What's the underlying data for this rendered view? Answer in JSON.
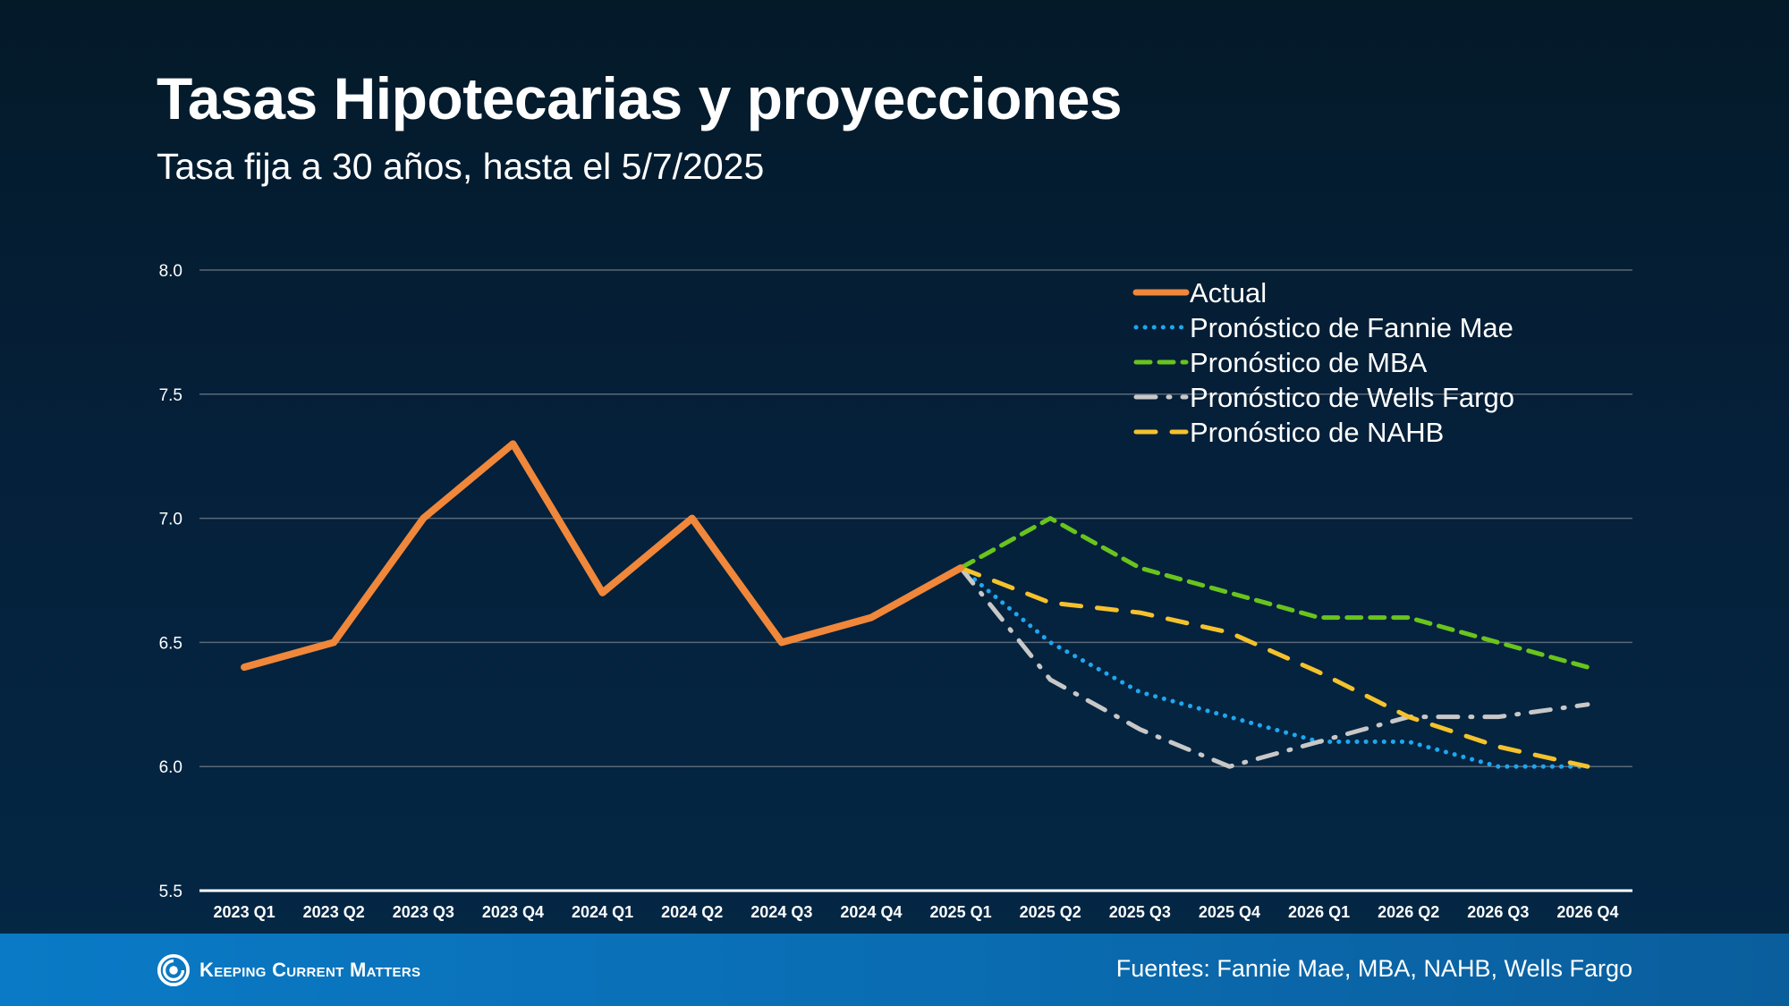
{
  "header": {
    "title": "Tasas Hipotecarias y proyecciones",
    "subtitle": "Tasa fija a 30 años, hasta el 5/7/2025"
  },
  "footer": {
    "brand": "Keeping Current Matters",
    "sources": "Fuentes: Fannie Mae, MBA, NAHB, Wells Fargo"
  },
  "colors": {
    "actual": "#f0873a",
    "fannie": "#1ea7f0",
    "mba": "#69c41c",
    "wells": "#c8c8c8",
    "nahb": "#f5c22c",
    "grid": "#5a6878",
    "axis": "#ffffff"
  },
  "chart_data": {
    "type": "line",
    "title": "",
    "xlabel": "",
    "ylabel": "",
    "ylim": [
      5.5,
      8.0
    ],
    "yticks": [
      5.5,
      6.0,
      6.5,
      7.0,
      7.5,
      8.0
    ],
    "grid": true,
    "legend_position": "top-right",
    "categories": [
      "2023 Q1",
      "2023 Q2",
      "2023 Q3",
      "2023 Q4",
      "2024 Q1",
      "2024 Q2",
      "2024 Q3",
      "2024 Q4",
      "2025 Q1",
      "2025 Q2",
      "2025 Q3",
      "2025 Q4",
      "2026 Q1",
      "2026 Q2",
      "2026 Q3",
      "2026 Q4"
    ],
    "series": [
      {
        "name": "Actual",
        "color_key": "actual",
        "style": "solid",
        "values": [
          6.4,
          6.5,
          7.0,
          7.3,
          6.7,
          7.0,
          6.5,
          6.6,
          6.8,
          null,
          null,
          null,
          null,
          null,
          null,
          null
        ]
      },
      {
        "name": "Pronóstico de Fannie Mae",
        "color_key": "fannie",
        "style": "dotted",
        "values": [
          null,
          null,
          null,
          null,
          null,
          null,
          null,
          null,
          6.8,
          6.5,
          6.3,
          6.2,
          6.1,
          6.1,
          6.0,
          6.0
        ]
      },
      {
        "name": "Pronóstico de MBA",
        "color_key": "mba",
        "style": "dashed",
        "values": [
          null,
          null,
          null,
          null,
          null,
          null,
          null,
          null,
          6.8,
          7.0,
          6.8,
          6.7,
          6.6,
          6.6,
          6.5,
          6.4
        ]
      },
      {
        "name": "Pronóstico de Wells Fargo",
        "color_key": "wells",
        "style": "dashdot",
        "values": [
          null,
          null,
          null,
          null,
          null,
          null,
          null,
          null,
          6.8,
          6.35,
          6.15,
          6.0,
          6.1,
          6.2,
          6.2,
          6.25
        ]
      },
      {
        "name": "Pronóstico de NAHB",
        "color_key": "nahb",
        "style": "longdash",
        "values": [
          null,
          null,
          null,
          null,
          null,
          null,
          null,
          null,
          6.8,
          6.66,
          6.62,
          6.54,
          6.38,
          6.2,
          6.08,
          6.0
        ]
      }
    ]
  }
}
